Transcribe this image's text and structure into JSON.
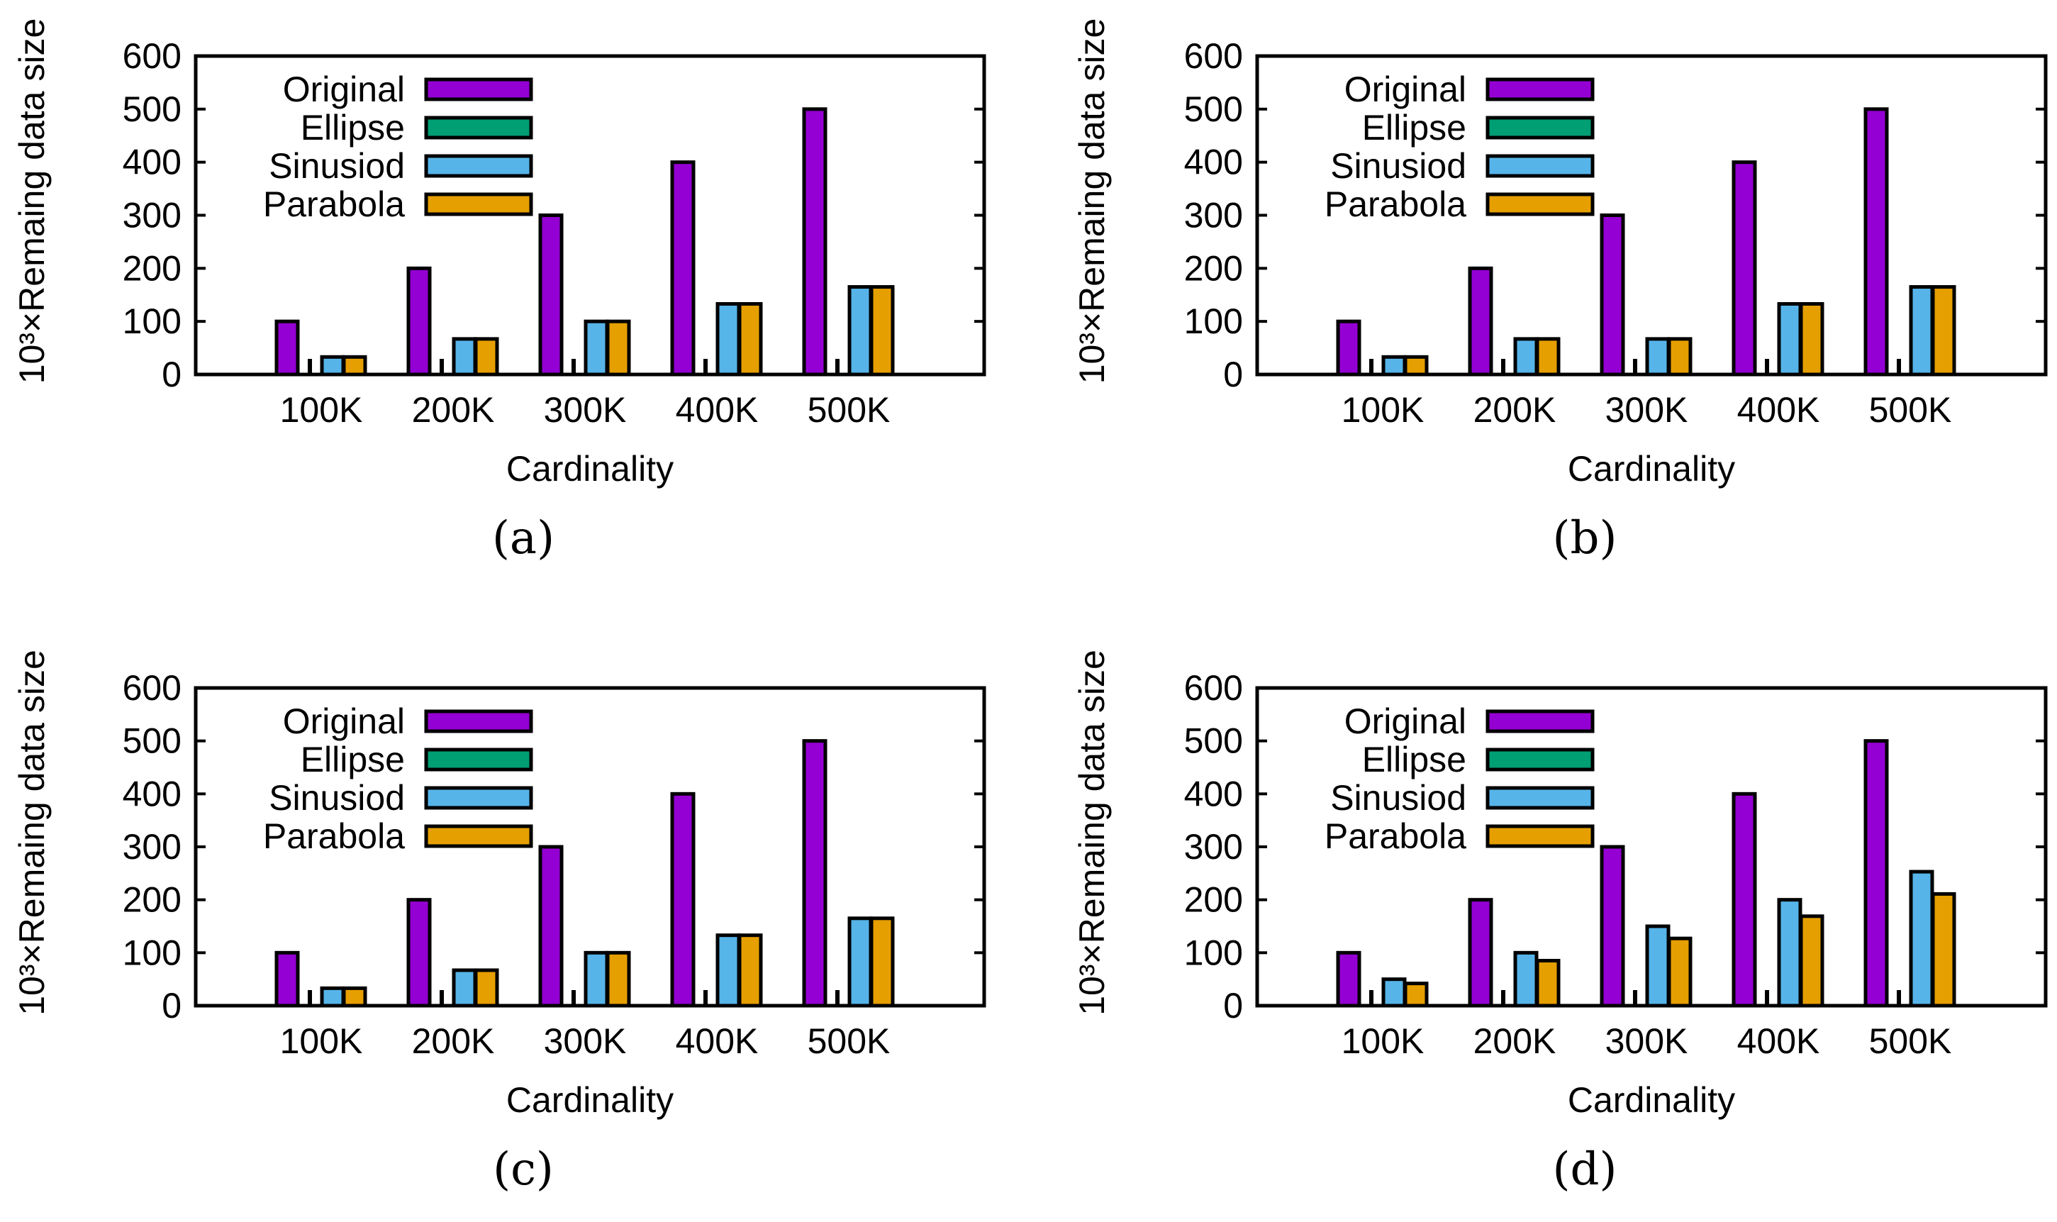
{
  "chart_data": [
    {
      "type": "bar",
      "caption": "(a)",
      "categories": [
        "100K",
        "200K",
        "300K",
        "400K",
        "500K"
      ],
      "xlabel": "Cardinality",
      "ylabel": "10³×Remaing data size",
      "ylim": [
        0,
        600
      ],
      "yticks": [
        "0",
        "100",
        "200",
        "300",
        "400",
        "500",
        "600"
      ],
      "legend_position": "top-left",
      "series": [
        {
          "name": "Original",
          "color": "#9400d3",
          "values": [
            100,
            200,
            300,
            400,
            500
          ]
        },
        {
          "name": "Ellipse",
          "color": "#009e73",
          "values": [
            0,
            0,
            0,
            0,
            0
          ]
        },
        {
          "name": "Sinusiod",
          "color": "#56b4e9",
          "values": [
            33,
            67,
            100,
            133,
            165
          ]
        },
        {
          "name": "Parabola",
          "color": "#e69f00",
          "values": [
            33,
            67,
            100,
            133,
            165
          ]
        }
      ]
    },
    {
      "type": "bar",
      "caption": "(b)",
      "categories": [
        "100K",
        "200K",
        "300K",
        "400K",
        "500K"
      ],
      "xlabel": "Cardinality",
      "ylabel": "10³×Remaing data size",
      "ylim": [
        0,
        600
      ],
      "yticks": [
        "0",
        "100",
        "200",
        "300",
        "400",
        "500",
        "600"
      ],
      "legend_position": "top-left",
      "series": [
        {
          "name": "Original",
          "color": "#9400d3",
          "values": [
            100,
            200,
            300,
            400,
            500
          ]
        },
        {
          "name": "Ellipse",
          "color": "#009e73",
          "values": [
            0,
            0,
            0,
            0,
            0
          ]
        },
        {
          "name": "Sinusiod",
          "color": "#56b4e9",
          "values": [
            33,
            67,
            67,
            133,
            165
          ]
        },
        {
          "name": "Parabola",
          "color": "#e69f00",
          "values": [
            33,
            67,
            67,
            133,
            165
          ]
        }
      ]
    },
    {
      "type": "bar",
      "caption": "(c)",
      "categories": [
        "100K",
        "200K",
        "300K",
        "400K",
        "500K"
      ],
      "xlabel": "Cardinality",
      "ylabel": "10³×Remaing data size",
      "ylim": [
        0,
        600
      ],
      "yticks": [
        "0",
        "100",
        "200",
        "300",
        "400",
        "500",
        "600"
      ],
      "legend_position": "top-left",
      "series": [
        {
          "name": "Original",
          "color": "#9400d3",
          "values": [
            100,
            200,
            300,
            400,
            500
          ]
        },
        {
          "name": "Ellipse",
          "color": "#009e73",
          "values": [
            0,
            0,
            0,
            0,
            0
          ]
        },
        {
          "name": "Sinusiod",
          "color": "#56b4e9",
          "values": [
            33,
            67,
            100,
            133,
            165
          ]
        },
        {
          "name": "Parabola",
          "color": "#e69f00",
          "values": [
            33,
            67,
            100,
            133,
            165
          ]
        }
      ]
    },
    {
      "type": "bar",
      "caption": "(d)",
      "categories": [
        "100K",
        "200K",
        "300K",
        "400K",
        "500K"
      ],
      "xlabel": "Cardinality",
      "ylabel": "10³×Remaing data size",
      "ylim": [
        0,
        600
      ],
      "yticks": [
        "0",
        "100",
        "200",
        "300",
        "400",
        "500",
        "600"
      ],
      "legend_position": "top-left",
      "series": [
        {
          "name": "Original",
          "color": "#9400d3",
          "values": [
            100,
            200,
            300,
            400,
            500
          ]
        },
        {
          "name": "Ellipse",
          "color": "#009e73",
          "values": [
            0,
            0,
            0,
            0,
            0
          ]
        },
        {
          "name": "Sinusiod",
          "color": "#56b4e9",
          "values": [
            50,
            100,
            150,
            200,
            253
          ]
        },
        {
          "name": "Parabola",
          "color": "#e69f00",
          "values": [
            42,
            85,
            127,
            169,
            211
          ]
        }
      ]
    }
  ]
}
